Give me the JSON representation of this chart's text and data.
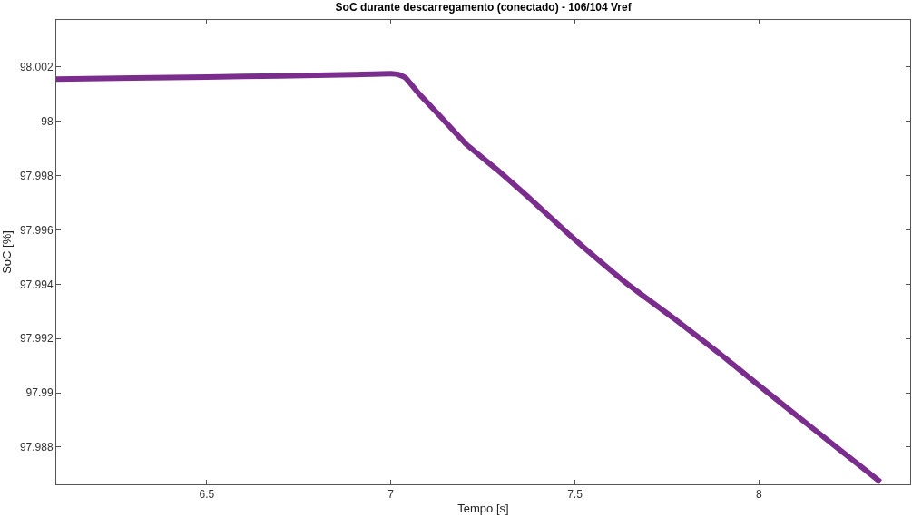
{
  "chart_data": {
    "type": "line",
    "title": "SoC durante descarregamento (conectado) - 106/104 Vref",
    "xlabel": "Tempo [s]",
    "ylabel": "SoC [%]",
    "x": [
      6.091,
      6.3,
      6.5,
      6.7,
      6.9,
      7.0,
      7.02,
      7.04,
      7.074,
      7.14,
      7.205,
      7.29,
      7.37,
      7.485,
      7.542,
      7.65,
      7.771,
      7.89,
      8.002,
      8.15,
      8.33
    ],
    "series": [
      {
        "color": "#7b2d8e",
        "values": [
          98.00155,
          98.00159,
          98.00163,
          98.00167,
          98.00172,
          98.00175,
          98.00172,
          98.0016,
          98.00105,
          98.0001,
          97.99915,
          97.9982,
          97.99725,
          97.99582,
          97.99515,
          97.99393,
          97.99272,
          97.99148,
          97.99025,
          97.98865,
          97.98672
        ]
      }
    ],
    "xlim": [
      6.091,
      8.411
    ],
    "ylim": [
      97.98663,
      98.00373
    ],
    "xticks": [
      6.5,
      7,
      7.5,
      8
    ],
    "yticks": [
      97.988,
      97.99,
      97.992,
      97.994,
      97.996,
      97.998,
      98,
      98.002
    ],
    "marker": "none",
    "line_style": "solid"
  }
}
